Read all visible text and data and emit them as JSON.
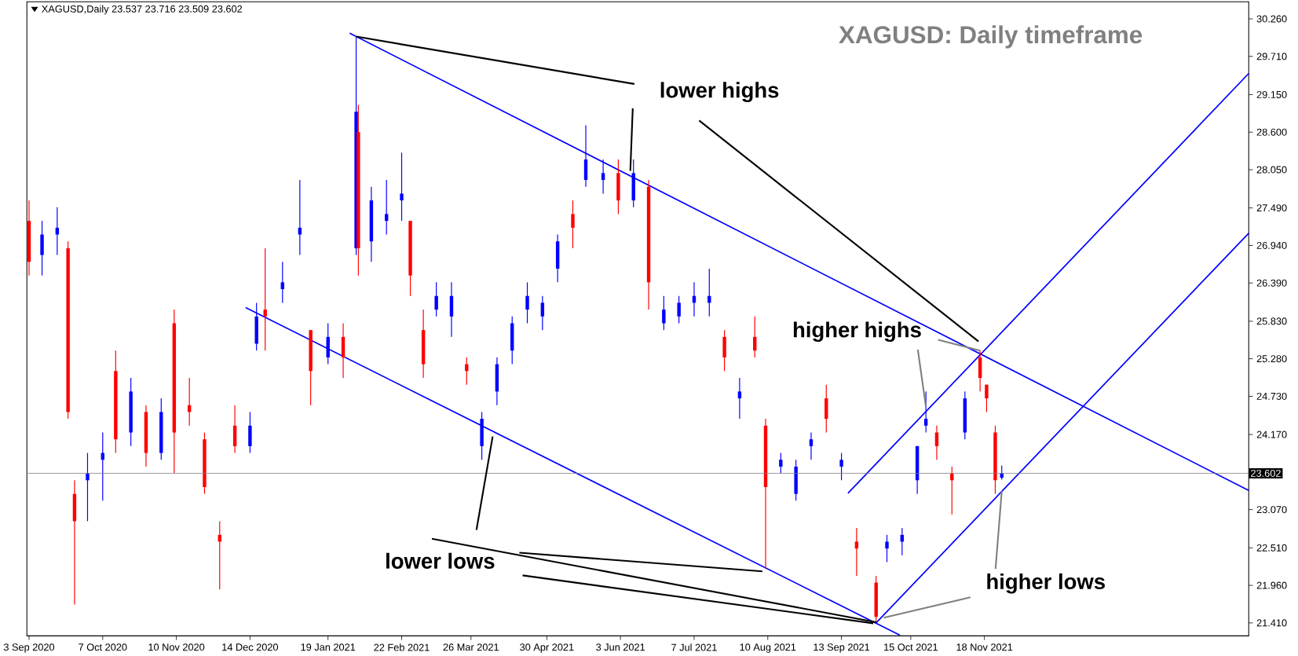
{
  "chart_data": {
    "type": "candlestick",
    "title": "XAGUSD: Daily timeframe",
    "subtitle": "XAGUSD,Daily  23.537 23.716 23.509 23.602",
    "annotations": [
      {
        "text": "lower highs",
        "x": "2021-02-01",
        "y": 30.0
      },
      {
        "text": "lower lows",
        "x": "2021-09-29",
        "y": 21.42
      },
      {
        "text": "higher highs",
        "x": "2021-11-16",
        "y": 25.4
      },
      {
        "text": "higher lows",
        "x": "2021-11-26",
        "y": 23.34
      }
    ],
    "xlim": [
      "2020-09-02",
      "2022-03-20"
    ],
    "xticks": [
      {
        "value": "2020-09-03",
        "label": "3 Sep 2020"
      },
      {
        "value": "2020-10-07",
        "label": "7 Oct 2020"
      },
      {
        "value": "2020-11-10",
        "label": "10 Nov 2020"
      },
      {
        "value": "2020-12-14",
        "label": "14 Dec 2020"
      },
      {
        "value": "2021-01-19",
        "label": "19 Jan 2021"
      },
      {
        "value": "2021-02-22",
        "label": "22 Feb 2021"
      },
      {
        "value": "2021-03-26",
        "label": "26 Mar 2021"
      },
      {
        "value": "2021-04-30",
        "label": "30 Apr 2021"
      },
      {
        "value": "2021-06-03",
        "label": "3 Jun 2021"
      },
      {
        "value": "2021-07-07",
        "label": "7 Jul 2021"
      },
      {
        "value": "2021-08-10",
        "label": "10 Aug 2021"
      },
      {
        "value": "2021-09-13",
        "label": "13 Sep 2021"
      },
      {
        "value": "2021-10-15",
        "label": "15 Oct 2021"
      },
      {
        "value": "2021-11-18",
        "label": "18 Nov 2021"
      }
    ],
    "ylim": [
      21.22,
      30.51
    ],
    "yticks": [
      {
        "value": 30.26,
        "label": "30.260"
      },
      {
        "value": 29.71,
        "label": "29.710"
      },
      {
        "value": 29.15,
        "label": "29.150"
      },
      {
        "value": 28.6,
        "label": "28.600"
      },
      {
        "value": 28.05,
        "label": "28.050"
      },
      {
        "value": 27.49,
        "label": "27.490"
      },
      {
        "value": 26.94,
        "label": "26.940"
      },
      {
        "value": 26.39,
        "label": "26.390"
      },
      {
        "value": 25.83,
        "label": "25.830"
      },
      {
        "value": 25.28,
        "label": "25.280"
      },
      {
        "value": 24.73,
        "label": "24.730"
      },
      {
        "value": 24.17,
        "label": "24.170"
      },
      {
        "value": 23.07,
        "label": "23.070"
      },
      {
        "value": 22.51,
        "label": "22.510"
      },
      {
        "value": 21.96,
        "label": "21.960"
      },
      {
        "value": 21.41,
        "label": "21.410"
      }
    ],
    "ref_lines": [
      {
        "axis": "y",
        "value": 23.602,
        "label": "23.602",
        "color": "#808080"
      }
    ],
    "series": [
      {
        "type": "line",
        "color": "#0000ff",
        "x": [
          "2021-01-29",
          "2022-03-20"
        ],
        "values": [
          30.05,
          23.35
        ]
      },
      {
        "type": "line",
        "color": "#0000ff",
        "x": [
          "2020-12-12",
          "2021-10-10"
        ],
        "values": [
          26.03,
          21.23
        ]
      },
      {
        "type": "line",
        "color": "#0000ff",
        "x": [
          "2021-09-16",
          "2022-03-20"
        ],
        "values": [
          23.31,
          29.46
        ]
      },
      {
        "type": "line",
        "color": "#0000ff",
        "x": [
          "2021-09-29",
          "2022-03-20"
        ],
        "values": [
          21.41,
          27.12
        ]
      },
      {
        "color": "#0000ff",
        "x": [
          "2020-09-09",
          "2020-09-16",
          "2020-09-30",
          "2020-10-07",
          "2020-10-20",
          "2020-11-03",
          "2020-12-14",
          "2020-12-17",
          "2020-12-29",
          "2021-01-06",
          "2021-01-19",
          "2021-02-01",
          "2021-02-08",
          "2021-02-15",
          "2021-02-22",
          "2021-03-10",
          "2021-03-17",
          "2021-03-31",
          "2021-04-07",
          "2021-04-14",
          "2021-04-21",
          "2021-04-28",
          "2021-05-05",
          "2021-05-18",
          "2021-05-26",
          "2021-06-09",
          "2021-06-23",
          "2021-06-30",
          "2021-07-07",
          "2021-07-14",
          "2021-07-28",
          "2021-08-16",
          "2021-08-23",
          "2021-08-30",
          "2021-09-13",
          "2021-10-04",
          "2021-10-11",
          "2021-10-18",
          "2021-10-22",
          "2021-11-09",
          "2021-11-26"
        ],
        "ohlc": [
          [
            26.8,
            27.3,
            26.5,
            27.1
          ],
          [
            27.1,
            27.5,
            26.8,
            27.2
          ],
          [
            23.5,
            23.9,
            22.9,
            23.6
          ],
          [
            23.8,
            24.2,
            23.2,
            23.9
          ],
          [
            24.2,
            25.0,
            24.0,
            24.8
          ],
          [
            23.9,
            24.7,
            23.8,
            24.5
          ],
          [
            24.0,
            24.5,
            23.9,
            24.3
          ],
          [
            25.5,
            26.1,
            25.4,
            25.9
          ],
          [
            26.3,
            26.7,
            26.1,
            26.4
          ],
          [
            27.1,
            27.9,
            26.8,
            27.2
          ],
          [
            25.3,
            25.8,
            25.2,
            25.6
          ],
          [
            26.9,
            30.0,
            26.8,
            28.9
          ],
          [
            27.0,
            27.8,
            26.7,
            27.6
          ],
          [
            27.3,
            27.9,
            27.1,
            27.4
          ],
          [
            27.6,
            28.3,
            27.3,
            27.7
          ],
          [
            26.0,
            26.4,
            25.9,
            26.2
          ],
          [
            25.9,
            26.4,
            25.6,
            26.2
          ],
          [
            24.0,
            24.5,
            23.8,
            24.4
          ],
          [
            24.8,
            25.3,
            24.6,
            25.2
          ],
          [
            25.4,
            25.9,
            25.2,
            25.8
          ],
          [
            26.0,
            26.4,
            25.8,
            26.2
          ],
          [
            25.9,
            26.2,
            25.7,
            26.1
          ],
          [
            26.6,
            27.1,
            26.4,
            27.0
          ],
          [
            27.9,
            28.7,
            27.8,
            28.2
          ],
          [
            27.9,
            28.2,
            27.7,
            28.0
          ],
          [
            27.6,
            28.2,
            27.5,
            28.0
          ],
          [
            25.8,
            26.2,
            25.7,
            26.0
          ],
          [
            25.9,
            26.2,
            25.8,
            26.1
          ],
          [
            26.1,
            26.4,
            25.9,
            26.2
          ],
          [
            26.1,
            26.6,
            25.9,
            26.2
          ],
          [
            24.7,
            25.0,
            24.4,
            24.8
          ],
          [
            23.7,
            23.9,
            23.6,
            23.8
          ],
          [
            23.3,
            23.8,
            23.2,
            23.7
          ],
          [
            24.0,
            24.2,
            23.8,
            24.1
          ],
          [
            23.7,
            23.9,
            23.5,
            23.8
          ],
          [
            22.5,
            22.7,
            22.3,
            22.6
          ],
          [
            22.6,
            22.8,
            22.4,
            22.7
          ],
          [
            23.5,
            24.0,
            23.3,
            24.0
          ],
          [
            24.3,
            24.8,
            24.2,
            24.4
          ],
          [
            24.2,
            24.8,
            24.1,
            24.7
          ],
          [
            23.537,
            23.716,
            23.509,
            23.602
          ]
        ]
      },
      {
        "color": "#ff0000",
        "x": [
          "2020-09-03",
          "2020-09-21",
          "2020-09-24",
          "2020-10-13",
          "2020-10-27",
          "2020-11-09",
          "2020-11-16",
          "2020-11-23",
          "2020-11-30",
          "2020-12-07",
          "2020-12-21",
          "2021-01-11",
          "2021-01-26",
          "2021-02-02",
          "2021-02-26",
          "2021-03-04",
          "2021-03-24",
          "2021-05-12",
          "2021-06-02",
          "2021-06-16",
          "2021-07-21",
          "2021-08-04",
          "2021-08-09",
          "2021-09-06",
          "2021-09-20",
          "2021-09-29",
          "2021-10-27",
          "2021-11-03",
          "2021-11-16",
          "2021-11-19",
          "2021-11-23"
        ],
        "ohlc": [
          [
            27.3,
            27.6,
            26.5,
            26.7
          ],
          [
            26.9,
            27.0,
            24.4,
            24.5
          ],
          [
            23.3,
            23.5,
            21.68,
            22.9
          ],
          [
            25.1,
            25.4,
            23.9,
            24.1
          ],
          [
            24.5,
            24.6,
            23.7,
            23.9
          ],
          [
            25.8,
            26.0,
            23.6,
            24.2
          ],
          [
            24.6,
            25.0,
            24.3,
            24.5
          ],
          [
            24.1,
            24.2,
            23.3,
            23.4
          ],
          [
            22.7,
            22.9,
            21.9,
            22.6
          ],
          [
            24.3,
            24.6,
            23.9,
            24.0
          ],
          [
            26.0,
            26.9,
            25.4,
            25.9
          ],
          [
            25.7,
            25.7,
            24.6,
            25.1
          ],
          [
            25.6,
            25.8,
            25.0,
            25.3
          ],
          [
            28.6,
            29.0,
            26.5,
            26.9
          ],
          [
            27.3,
            27.3,
            26.2,
            26.5
          ],
          [
            25.7,
            26.0,
            25.0,
            25.2
          ],
          [
            25.2,
            25.3,
            24.9,
            25.1
          ],
          [
            27.4,
            27.6,
            26.9,
            27.2
          ],
          [
            28.0,
            28.2,
            27.4,
            27.6
          ],
          [
            27.8,
            27.9,
            26.0,
            26.4
          ],
          [
            25.6,
            25.7,
            25.1,
            25.3
          ],
          [
            25.6,
            25.9,
            25.3,
            25.4
          ],
          [
            24.3,
            24.4,
            22.2,
            23.4
          ],
          [
            24.7,
            24.9,
            24.2,
            24.4
          ],
          [
            22.6,
            22.8,
            22.1,
            22.5
          ],
          [
            22.0,
            22.1,
            21.42,
            21.5
          ],
          [
            24.2,
            24.3,
            23.8,
            24.0
          ],
          [
            23.6,
            23.7,
            23.0,
            23.5
          ],
          [
            25.3,
            25.4,
            24.8,
            25.0
          ],
          [
            24.9,
            24.9,
            24.5,
            24.7
          ],
          [
            24.2,
            24.3,
            23.3,
            23.5
          ]
        ]
      }
    ]
  }
}
